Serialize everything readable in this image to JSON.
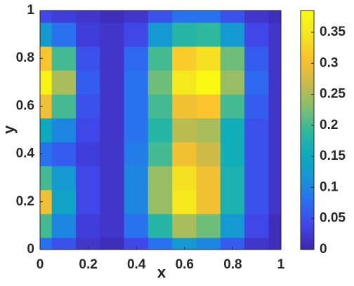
{
  "chart_data": {
    "type": "contour",
    "x_label": "x",
    "y_label": "y",
    "x": [
      0,
      0.1,
      0.2,
      0.3,
      0.4,
      0.5,
      0.6,
      0.7,
      0.8,
      0.9,
      1
    ],
    "y": [
      0,
      0.1,
      0.2,
      0.3,
      0.4,
      0.5,
      0.6,
      0.7,
      0.8,
      0.9,
      1
    ],
    "z": [
      [
        0.08,
        0.05,
        0.02,
        0.01,
        0.04,
        0.08,
        0.12,
        0.1,
        0.06,
        0.02,
        0.01
      ],
      [
        0.2,
        0.1,
        0.03,
        0.02,
        0.08,
        0.18,
        0.25,
        0.22,
        0.12,
        0.04,
        0.01
      ],
      [
        0.3,
        0.14,
        0.04,
        0.02,
        0.1,
        0.24,
        0.35,
        0.3,
        0.17,
        0.05,
        0.02
      ],
      [
        0.2,
        0.12,
        0.04,
        0.02,
        0.1,
        0.24,
        0.34,
        0.3,
        0.17,
        0.05,
        0.02
      ],
      [
        0.08,
        0.06,
        0.03,
        0.02,
        0.09,
        0.2,
        0.3,
        0.27,
        0.16,
        0.05,
        0.02
      ],
      [
        0.15,
        0.1,
        0.04,
        0.02,
        0.08,
        0.18,
        0.26,
        0.25,
        0.16,
        0.05,
        0.02
      ],
      [
        0.3,
        0.2,
        0.05,
        0.02,
        0.08,
        0.2,
        0.3,
        0.31,
        0.2,
        0.06,
        0.02
      ],
      [
        0.37,
        0.25,
        0.06,
        0.02,
        0.08,
        0.22,
        0.35,
        0.38,
        0.24,
        0.07,
        0.02
      ],
      [
        0.31,
        0.2,
        0.05,
        0.02,
        0.07,
        0.2,
        0.32,
        0.34,
        0.22,
        0.06,
        0.02
      ],
      [
        0.12,
        0.08,
        0.03,
        0.02,
        0.04,
        0.12,
        0.18,
        0.19,
        0.12,
        0.04,
        0.02
      ],
      [
        0.04,
        0.03,
        0.02,
        0.01,
        0.02,
        0.05,
        0.08,
        0.08,
        0.05,
        0.02,
        0.01
      ]
    ],
    "xlim": [
      0,
      1
    ],
    "ylim": [
      0,
      1
    ],
    "xticks": [
      0,
      0.2,
      0.4,
      0.6,
      0.8,
      1
    ],
    "yticks": [
      0,
      0.2,
      0.4,
      0.6,
      0.8,
      1
    ],
    "clim": [
      0,
      0.385
    ],
    "cticks": [
      0,
      0.05,
      0.1,
      0.15,
      0.2,
      0.25,
      0.3,
      0.35
    ],
    "colormap": [
      "#3e26a8",
      "#4145e8",
      "#2a6ff2",
      "#1596d4",
      "#0cacbd",
      "#33b99a",
      "#86bf6c",
      "#cdbb47",
      "#fbc22e",
      "#f5e61f",
      "#f9fb0e"
    ]
  }
}
